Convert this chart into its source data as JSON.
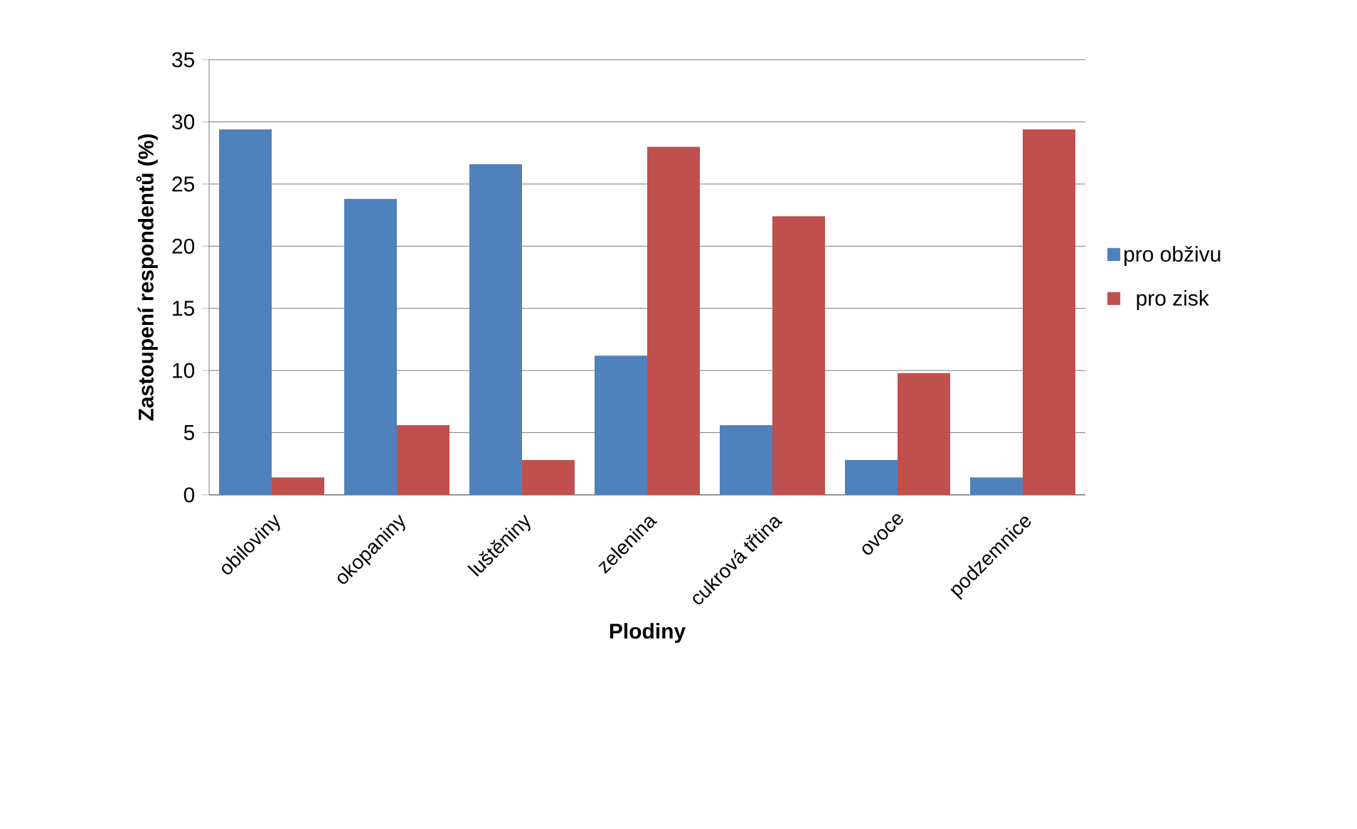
{
  "chart_data": {
    "type": "bar",
    "xlabel": "Plodiny",
    "ylabel": "Zastoupení respondentů (%)",
    "categories": [
      "obiloviny",
      "okopaniny",
      "luštěniny",
      "zelenina",
      "cukrová třtina",
      "ovoce",
      "podzemnice"
    ],
    "series": [
      {
        "name": "pro obživu",
        "color": "#4f81bd",
        "values": [
          29.4,
          23.8,
          26.6,
          11.2,
          5.6,
          2.8,
          1.4
        ]
      },
      {
        "name": "pro zisk",
        "color": "#c0504d",
        "values": [
          1.4,
          5.6,
          2.8,
          28.0,
          22.4,
          9.8,
          29.4
        ]
      }
    ],
    "ylim": [
      0,
      35
    ],
    "yticks": [
      0,
      5,
      10,
      15,
      20,
      25,
      30,
      35
    ],
    "grid": "y",
    "legend": "right"
  }
}
